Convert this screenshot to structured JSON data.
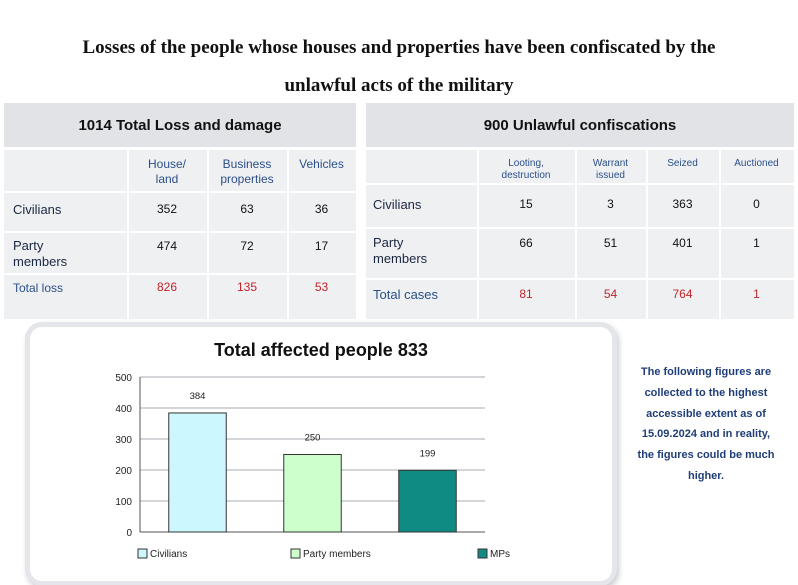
{
  "title": {
    "line1": "Losses of the people whose houses and properties have been confiscated by the",
    "line2": "unlawful acts of the military"
  },
  "loss_table": {
    "header": "1014 Total Loss and damage",
    "columns": [
      "House/\nland",
      "Business\nproperties",
      "Vehicles"
    ],
    "rows": [
      {
        "label": "Civilians",
        "values": [
          "352",
          "63",
          "36"
        ]
      },
      {
        "label": "Party\nmembers",
        "values": [
          "474",
          "72",
          "17"
        ]
      },
      {
        "label": "Total loss",
        "values": [
          "826",
          "135",
          "53"
        ]
      }
    ]
  },
  "confiscation_table": {
    "header": "900 Unlawful confiscations",
    "columns": [
      "Looting,\ndestruction",
      "Warrant\nissued",
      "Seized",
      "Auctioned"
    ],
    "rows": [
      {
        "label": "Civilians",
        "values": [
          "15",
          "3",
          "363",
          "0"
        ]
      },
      {
        "label": "Party\nmembers",
        "values": [
          "66",
          "51",
          "401",
          "1"
        ]
      },
      {
        "label": "Total cases",
        "values": [
          "81",
          "54",
          "764",
          "1"
        ]
      }
    ]
  },
  "chart_data": {
    "type": "bar",
    "title": "Total affected people 833",
    "categories": [
      "Civilians",
      "Party members",
      "MPs"
    ],
    "values": [
      384,
      250,
      199
    ],
    "data_labels": [
      "384",
      "250",
      "199"
    ],
    "ylim": [
      0,
      500
    ],
    "yticks": [
      "0",
      "100",
      "200",
      "300",
      "400",
      "500"
    ],
    "grid": true,
    "legend": "bottom",
    "colors": [
      "#ccf7fe",
      "#ccffcc",
      "#0f8b84"
    ],
    "xlabel": "",
    "ylabel": ""
  },
  "note": "The following figures are collected to the highest accessible extent as of 15.09.2024 and in reality, the figures could be much higher."
}
